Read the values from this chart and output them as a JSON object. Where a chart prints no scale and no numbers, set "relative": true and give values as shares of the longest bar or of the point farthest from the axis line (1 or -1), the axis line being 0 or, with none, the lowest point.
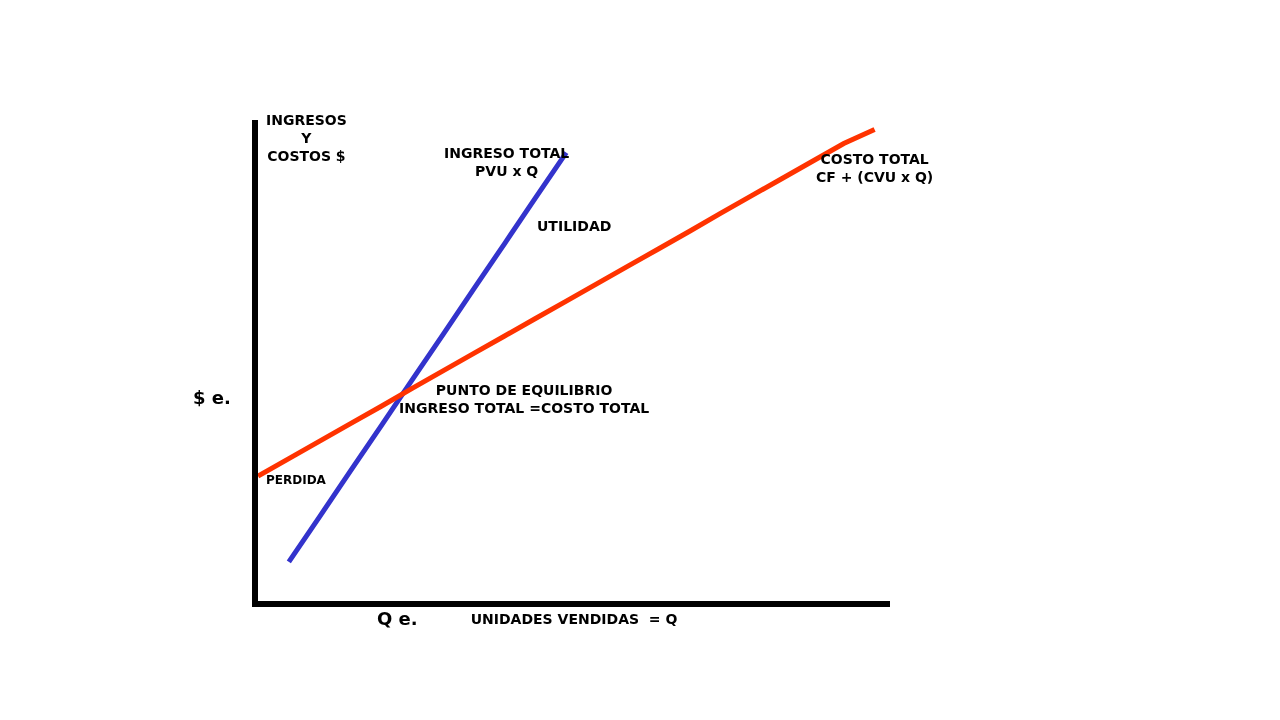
{
  "chart_data": {
    "type": "line",
    "relative": true,
    "ylabel": "INGRESOS\nY\nCOSTOS $",
    "xlabel": "UNIDADES VENDIDAS  = Q",
    "categories": [
      null,
      null,
      null,
      null,
      null,
      null,
      null,
      null,
      null,
      null,
      null,
      null,
      null,
      null,
      null,
      null,
      null,
      null,
      null,
      null,
      null
    ],
    "series": [
      {
        "name": "INGRESO TOTAL\nPVU x Q",
        "color": "#3333cc",
        "values": [
          null,
          0.083,
          0.179,
          0.276,
          0.372,
          0.469,
          0.565,
          0.662,
          0.758,
          0.855,
          0.951,
          null,
          null,
          null,
          null,
          null,
          null,
          null,
          null,
          null,
          null
        ]
      },
      {
        "name": "COSTO TOTAL\nCF + (CVU x Q)",
        "color": "#ff3300",
        "values": [
          0.265,
          0.302,
          0.339,
          0.376,
          0.413,
          0.451,
          0.488,
          0.525,
          0.562,
          0.599,
          0.636,
          0.673,
          0.71,
          0.747,
          0.784,
          0.822,
          0.859,
          0.896,
          0.933,
          0.97,
          1.0
        ]
      }
    ],
    "annotations": [
      "UTILIDAD",
      "PUNTO DE EQUILIBRIO\nINGRESO TOTAL =COSTO TOTAL",
      "PERDIDA",
      "$ e.",
      "Q e."
    ],
    "legend": false,
    "tick_labels": false,
    "marker": "none",
    "line_style": "solid"
  }
}
